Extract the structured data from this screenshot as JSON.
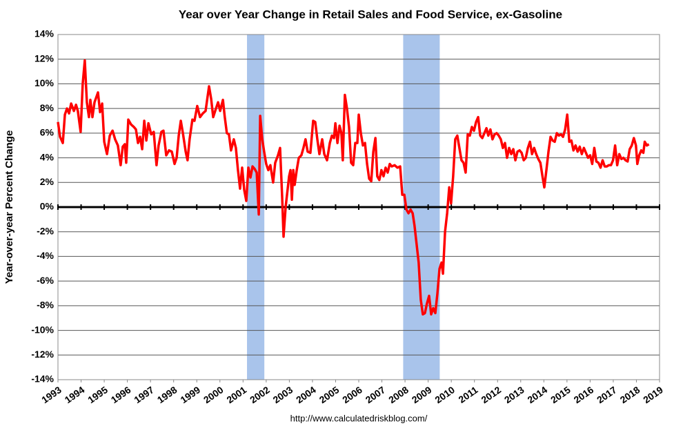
{
  "chart_data": {
    "type": "line",
    "title": "Year over Year Change in Retail Sales and Food Service, ex-Gasoline",
    "y_axis_label": "Year-over-year Percent Change",
    "source": "http://www.calculatedriskblog.com/",
    "color": "#ff0000",
    "recession_color": "#a9c4eb",
    "recessions": [
      [
        2001.17,
        2001.92
      ],
      [
        2007.92,
        2009.5
      ]
    ],
    "grid": true,
    "xlim": [
      1993,
      2019
    ],
    "xticks": [
      1993,
      1994,
      1995,
      1996,
      1997,
      1998,
      1999,
      2000,
      2001,
      2002,
      2003,
      2004,
      2005,
      2006,
      2007,
      2008,
      2009,
      2010,
      2011,
      2012,
      2013,
      2014,
      2015,
      2016,
      2017,
      2018,
      2019
    ],
    "ylim": [
      -14,
      14
    ],
    "yticks": [
      {
        "value": -14,
        "label": "-14%"
      },
      {
        "value": -12,
        "label": "-12%"
      },
      {
        "value": -10,
        "label": "-10%"
      },
      {
        "value": -8,
        "label": "-8%"
      },
      {
        "value": -6,
        "label": "-6%"
      },
      {
        "value": -4,
        "label": "-4%"
      },
      {
        "value": -2,
        "label": "-2%"
      },
      {
        "value": 0,
        "label": "0%"
      },
      {
        "value": 2,
        "label": "2%"
      },
      {
        "value": 4,
        "label": "4%"
      },
      {
        "value": 6,
        "label": "6%"
      },
      {
        "value": 8,
        "label": "8%"
      },
      {
        "value": 10,
        "label": "10%"
      },
      {
        "value": 12,
        "label": "12%"
      },
      {
        "value": 14,
        "label": "14%"
      }
    ],
    "x": [
      1993.0,
      1993.09,
      1993.21,
      1993.3,
      1993.39,
      1993.48,
      1993.57,
      1993.69,
      1993.78,
      1993.86,
      1993.98,
      1994.07,
      1994.16,
      1994.25,
      1994.34,
      1994.4,
      1994.49,
      1994.58,
      1994.73,
      1994.82,
      1994.91,
      1995.0,
      1995.12,
      1995.24,
      1995.36,
      1995.47,
      1995.59,
      1995.71,
      1995.8,
      1995.89,
      1995.95,
      1996.04,
      1996.16,
      1996.28,
      1996.37,
      1996.46,
      1996.55,
      1996.64,
      1996.73,
      1996.82,
      1996.91,
      1997.03,
      1997.14,
      1997.26,
      1997.35,
      1997.47,
      1997.56,
      1997.68,
      1997.8,
      1997.92,
      1998.04,
      1998.13,
      1998.22,
      1998.31,
      1998.4,
      1998.52,
      1998.6,
      1998.69,
      1998.81,
      1998.9,
      1999.02,
      1999.14,
      1999.26,
      1999.38,
      1999.53,
      1999.62,
      1999.71,
      1999.83,
      1999.92,
      2000.01,
      2000.13,
      2000.21,
      2000.3,
      2000.39,
      2000.48,
      2000.6,
      2000.69,
      2000.78,
      2000.87,
      2000.96,
      2001.05,
      2001.14,
      2001.23,
      2001.32,
      2001.41,
      2001.5,
      2001.59,
      2001.68,
      2001.74,
      2001.83,
      2001.91,
      2002.0,
      2002.09,
      2002.18,
      2002.3,
      2002.39,
      2002.51,
      2002.6,
      2002.69,
      2002.75,
      2002.84,
      2002.93,
      2002.99,
      2003.05,
      2003.11,
      2003.17,
      2003.23,
      2003.32,
      2003.41,
      2003.52,
      2003.61,
      2003.7,
      2003.79,
      2003.91,
      2004.03,
      2004.12,
      2004.21,
      2004.3,
      2004.42,
      2004.51,
      2004.63,
      2004.75,
      2004.84,
      2004.93,
      2004.99,
      2005.08,
      2005.17,
      2005.25,
      2005.31,
      2005.4,
      2005.49,
      2005.58,
      2005.67,
      2005.76,
      2005.85,
      2005.94,
      2006.0,
      2006.09,
      2006.18,
      2006.27,
      2006.36,
      2006.45,
      2006.54,
      2006.63,
      2006.72,
      2006.8,
      2006.89,
      2006.98,
      2007.07,
      2007.16,
      2007.25,
      2007.34,
      2007.43,
      2007.55,
      2007.67,
      2007.79,
      2007.88,
      2007.97,
      2008.06,
      2008.15,
      2008.24,
      2008.33,
      2008.41,
      2008.5,
      2008.59,
      2008.68,
      2008.77,
      2008.86,
      2008.95,
      2009.04,
      2009.13,
      2009.22,
      2009.31,
      2009.4,
      2009.49,
      2009.58,
      2009.64,
      2009.73,
      2009.82,
      2009.91,
      2009.99,
      2010.08,
      2010.17,
      2010.26,
      2010.35,
      2010.44,
      2010.53,
      2010.62,
      2010.71,
      2010.8,
      2010.89,
      2010.98,
      2011.07,
      2011.16,
      2011.25,
      2011.34,
      2011.43,
      2011.52,
      2011.6,
      2011.69,
      2011.78,
      2011.87,
      2011.96,
      2012.05,
      2012.14,
      2012.23,
      2012.32,
      2012.41,
      2012.5,
      2012.59,
      2012.68,
      2012.77,
      2012.86,
      2012.95,
      2013.04,
      2013.13,
      2013.22,
      2013.31,
      2013.4,
      2013.49,
      2013.58,
      2013.67,
      2013.76,
      2013.85,
      2013.94,
      2014.02,
      2014.11,
      2014.2,
      2014.29,
      2014.38,
      2014.47,
      2014.56,
      2014.65,
      2014.74,
      2014.83,
      2014.92,
      2015.01,
      2015.1,
      2015.19,
      2015.28,
      2015.37,
      2015.46,
      2015.55,
      2015.64,
      2015.73,
      2015.82,
      2015.91,
      2016.0,
      2016.09,
      2016.18,
      2016.27,
      2016.36,
      2016.45,
      2016.54,
      2016.63,
      2016.72,
      2016.81,
      2016.9,
      2016.99,
      2017.08,
      2017.17,
      2017.26,
      2017.35,
      2017.44,
      2017.53,
      2017.62,
      2017.71,
      2017.8,
      2017.89,
      2017.98,
      2018.04,
      2018.12,
      2018.21,
      2018.3,
      2018.36,
      2018.45,
      2018.54
    ],
    "values": [
      6.9,
      5.7,
      5.2,
      7.5,
      8.0,
      7.6,
      8.4,
      7.8,
      8.3,
      7.8,
      6.1,
      10.0,
      11.9,
      8.5,
      7.3,
      8.7,
      7.3,
      8.5,
      9.3,
      7.7,
      8.4,
      5.3,
      4.3,
      5.8,
      6.2,
      5.5,
      5.0,
      3.4,
      4.9,
      5.1,
      3.6,
      7.1,
      6.7,
      6.5,
      6.3,
      5.2,
      5.7,
      4.7,
      7.0,
      5.4,
      6.8,
      5.9,
      6.1,
      3.4,
      5.0,
      6.1,
      6.2,
      4.2,
      4.6,
      4.5,
      3.5,
      4.0,
      5.8,
      7.0,
      6.0,
      4.5,
      3.8,
      5.5,
      7.1,
      7.0,
      8.2,
      7.3,
      7.6,
      7.8,
      9.8,
      8.8,
      7.3,
      8.0,
      8.5,
      7.8,
      8.7,
      7.3,
      6.0,
      5.9,
      4.6,
      5.5,
      4.8,
      3.0,
      1.5,
      3.2,
      1.4,
      0.5,
      3.2,
      2.4,
      3.3,
      3.1,
      2.8,
      -0.6,
      7.4,
      5.5,
      4.5,
      3.5,
      3.0,
      3.4,
      2.0,
      3.6,
      4.2,
      4.8,
      0.8,
      -2.4,
      0.0,
      1.5,
      2.5,
      3.0,
      0.6,
      3.0,
      1.8,
      3.0,
      4.0,
      4.2,
      4.8,
      5.5,
      4.5,
      4.4,
      7.0,
      6.9,
      5.5,
      4.3,
      5.5,
      4.3,
      3.8,
      5.2,
      5.8,
      5.6,
      6.8,
      5.2,
      6.6,
      6.0,
      3.8,
      9.1,
      8.0,
      6.5,
      3.6,
      3.4,
      5.2,
      5.2,
      7.5,
      6.0,
      5.0,
      5.2,
      3.5,
      2.3,
      2.1,
      4.5,
      5.6,
      2.5,
      2.2,
      3.0,
      2.5,
      3.2,
      2.8,
      3.5,
      3.3,
      3.4,
      3.2,
      3.3,
      1.0,
      1.0,
      -0.2,
      -0.5,
      -0.2,
      -0.5,
      -1.5,
      -3.0,
      -4.5,
      -7.5,
      -8.7,
      -8.6,
      -7.8,
      -7.2,
      -8.7,
      -8.2,
      -8.6,
      -7.0,
      -5.0,
      -4.5,
      -5.4,
      -2.0,
      -0.5,
      1.6,
      0.3,
      2.5,
      5.5,
      5.8,
      4.8,
      3.8,
      3.6,
      2.8,
      5.9,
      5.8,
      6.5,
      6.2,
      6.9,
      7.3,
      5.8,
      5.6,
      6.0,
      6.4,
      5.8,
      6.3,
      5.5,
      5.9,
      6.0,
      5.8,
      5.5,
      4.8,
      5.2,
      4.0,
      4.8,
      4.3,
      4.7,
      3.8,
      4.5,
      4.6,
      4.4,
      3.8,
      4.0,
      4.8,
      5.3,
      4.3,
      4.8,
      4.3,
      3.9,
      3.6,
      2.5,
      1.6,
      3.0,
      4.5,
      5.7,
      5.4,
      5.3,
      6.0,
      5.8,
      5.9,
      5.7,
      6.3,
      7.5,
      5.3,
      5.4,
      4.6,
      5.0,
      4.5,
      4.9,
      4.3,
      4.8,
      4.4,
      4.0,
      4.2,
      3.5,
      4.8,
      3.7,
      3.6,
      3.2,
      3.8,
      3.3,
      3.3,
      3.4,
      3.4,
      3.8,
      5.0,
      3.4,
      4.3,
      3.9,
      4.0,
      3.8,
      3.7,
      4.7,
      5.0,
      5.6,
      5.0,
      3.5,
      4.2,
      4.6,
      4.4,
      5.3,
      5.0,
      5.1
    ]
  }
}
